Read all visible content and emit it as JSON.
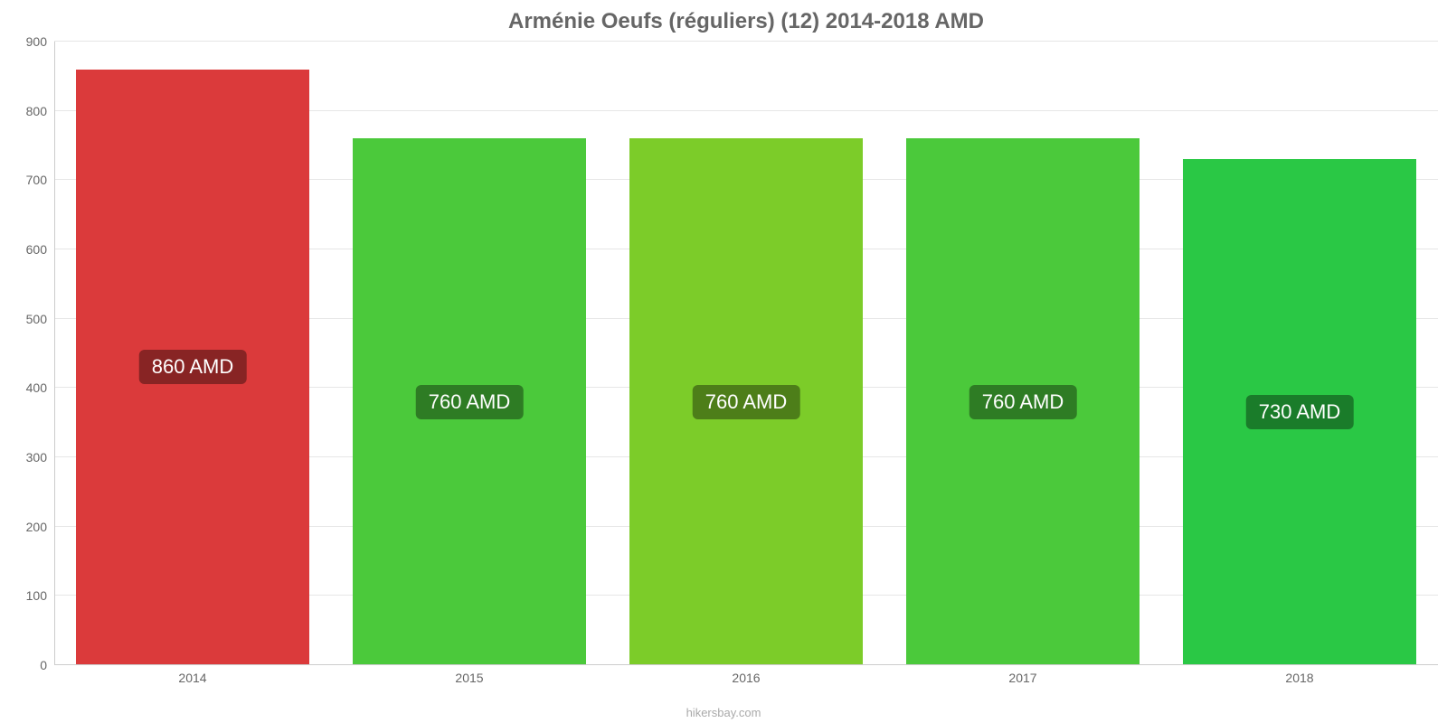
{
  "chart": {
    "type": "bar",
    "title": "Arménie Oeufs (réguliers) (12) 2014-2018 AMD",
    "title_color": "#666666",
    "title_fontsize": 24,
    "background_color": "#ffffff",
    "grid_color": "#e6e6e6",
    "axis_line_color": "#cccccc",
    "tick_label_color": "#666666",
    "tick_fontsize": 14,
    "bar_width_ratio": 0.84,
    "ylim": [
      0,
      900
    ],
    "ytick_step": 100,
    "yticks": [
      {
        "value": 0,
        "label": "0"
      },
      {
        "value": 100,
        "label": "100"
      },
      {
        "value": 200,
        "label": "200"
      },
      {
        "value": 300,
        "label": "300"
      },
      {
        "value": 400,
        "label": "400"
      },
      {
        "value": 500,
        "label": "500"
      },
      {
        "value": 600,
        "label": "600"
      },
      {
        "value": 700,
        "label": "700"
      },
      {
        "value": 800,
        "label": "800"
      },
      {
        "value": 900,
        "label": "900"
      }
    ],
    "categories": [
      "2014",
      "2015",
      "2016",
      "2017",
      "2018"
    ],
    "values": [
      860,
      760,
      760,
      760,
      730
    ],
    "bar_colors": [
      "#db3a3b",
      "#4bc93b",
      "#7ccc29",
      "#4bc93b",
      "#2ac845"
    ],
    "value_labels": [
      "860 AMD",
      "760 AMD",
      "760 AMD",
      "760 AMD",
      "730 AMD"
    ],
    "value_label_bg": "rgba(0,0,0,0.38)",
    "value_label_color": "#ffffff",
    "value_label_fontsize": 22,
    "attribution": "hikersbay.com",
    "attribution_color": "#aaaaaa"
  }
}
